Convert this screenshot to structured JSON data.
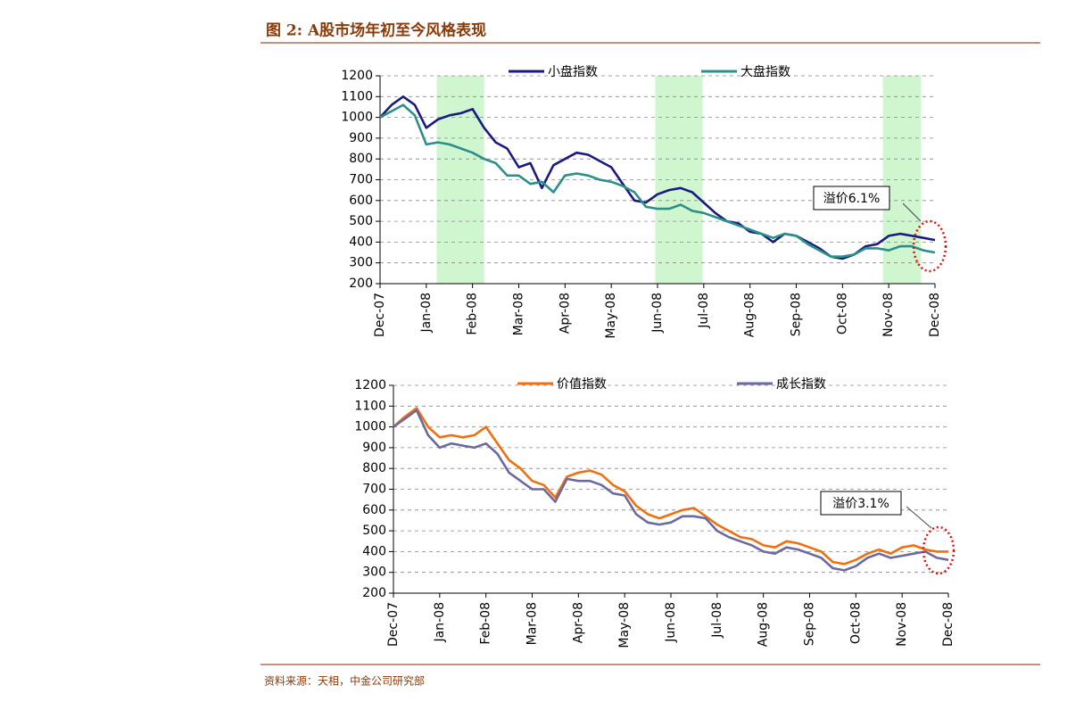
{
  "header": {
    "title": "图 2:  A股市场年初至今风格表现"
  },
  "chart_data": [
    {
      "type": "line",
      "categories": [
        "Dec-07",
        null,
        null,
        null,
        "Jan-08",
        null,
        null,
        null,
        "Feb-08",
        null,
        null,
        null,
        "Mar-08",
        null,
        null,
        null,
        "Apr-08",
        null,
        null,
        null,
        "May-08",
        null,
        null,
        null,
        "Jun-08",
        null,
        null,
        null,
        "Jul-08",
        null,
        null,
        null,
        "Aug-08",
        null,
        null,
        null,
        "Sep-08",
        null,
        null,
        null,
        "Oct-08",
        null,
        null,
        null,
        "Nov-08",
        null,
        null,
        null,
        "Dec-08"
      ],
      "series": [
        {
          "name": "小盘指数",
          "color": "#1a1a80",
          "values": [
            1000,
            1060,
            1100,
            1060,
            950,
            990,
            1010,
            1020,
            1040,
            950,
            880,
            850,
            760,
            780,
            660,
            770,
            800,
            830,
            820,
            790,
            760,
            680,
            600,
            590,
            630,
            650,
            660,
            640,
            590,
            540,
            500,
            490,
            450,
            440,
            400,
            440,
            430,
            400,
            370,
            330,
            320,
            340,
            380,
            390,
            430,
            440,
            430,
            420,
            410
          ]
        },
        {
          "name": "大盘指数",
          "color": "#2a9088",
          "values": [
            1000,
            1030,
            1060,
            1010,
            870,
            880,
            870,
            850,
            830,
            800,
            780,
            720,
            720,
            680,
            690,
            640,
            720,
            730,
            720,
            700,
            690,
            670,
            640,
            570,
            560,
            560,
            580,
            550,
            540,
            520,
            500,
            480,
            460,
            440,
            420,
            440,
            430,
            390,
            360,
            330,
            330,
            340,
            370,
            370,
            360,
            380,
            380,
            360,
            350
          ]
        }
      ],
      "ylim": [
        200,
        1200
      ],
      "yticks": [
        200,
        300,
        400,
        500,
        600,
        700,
        800,
        900,
        1000,
        1100,
        1200
      ],
      "grid": true,
      "annotation": "溢价6.1%"
    },
    {
      "type": "line",
      "categories": [
        "Dec-07",
        null,
        null,
        null,
        "Jan-08",
        null,
        null,
        null,
        "Feb-08",
        null,
        null,
        null,
        "Mar-08",
        null,
        null,
        null,
        "Apr-08",
        null,
        null,
        null,
        "May-08",
        null,
        null,
        null,
        "Jun-08",
        null,
        null,
        null,
        "Jul-08",
        null,
        null,
        null,
        "Aug-08",
        null,
        null,
        null,
        "Sep-08",
        null,
        null,
        null,
        "Oct-08",
        null,
        null,
        null,
        "Nov-08",
        null,
        null,
        null,
        "Dec-08"
      ],
      "series": [
        {
          "name": "价值指数",
          "color": "#f07010",
          "values": [
            1000,
            1050,
            1090,
            1000,
            950,
            960,
            950,
            960,
            1000,
            920,
            840,
            800,
            740,
            720,
            660,
            760,
            780,
            790,
            770,
            720,
            690,
            620,
            580,
            560,
            580,
            600,
            610,
            570,
            530,
            500,
            470,
            460,
            430,
            420,
            450,
            440,
            420,
            400,
            350,
            340,
            360,
            390,
            410,
            390,
            420,
            430,
            410,
            400,
            400
          ]
        },
        {
          "name": "成长指数",
          "color": "#6b6aa0",
          "values": [
            1000,
            1040,
            1080,
            960,
            900,
            920,
            910,
            900,
            920,
            870,
            780,
            740,
            700,
            700,
            640,
            750,
            740,
            740,
            720,
            680,
            670,
            580,
            540,
            530,
            540,
            570,
            570,
            560,
            500,
            470,
            450,
            430,
            400,
            390,
            420,
            410,
            390,
            370,
            320,
            310,
            330,
            370,
            390,
            370,
            380,
            390,
            400,
            370,
            360
          ]
        }
      ],
      "ylim": [
        200,
        1200
      ],
      "yticks": [
        200,
        300,
        400,
        500,
        600,
        700,
        800,
        900,
        1000,
        1100,
        1200
      ],
      "grid": true,
      "annotation": "溢价3.1%"
    }
  ],
  "footer": {
    "source": "资料来源：天相，中金公司研究部"
  }
}
